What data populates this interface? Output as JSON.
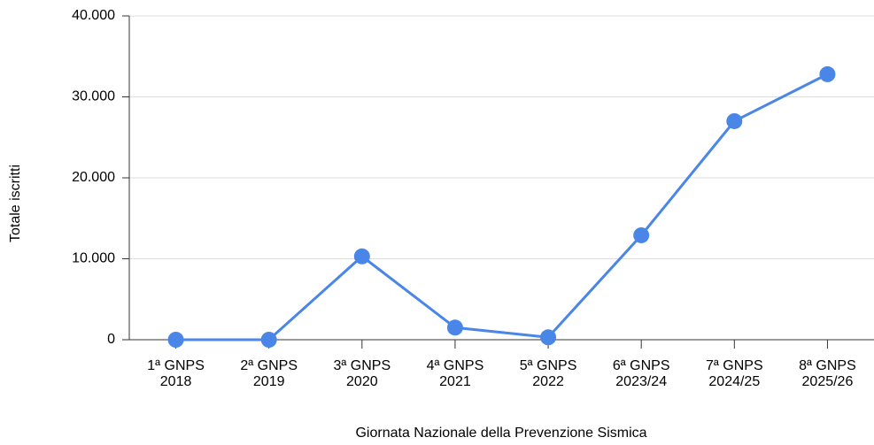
{
  "chart_data": {
    "type": "line",
    "xlabel": "Giornata Nazionale della Prevenzione Sismica",
    "ylabel": "Totale iscritti",
    "categories": [
      [
        "1ª GNPS",
        "2018"
      ],
      [
        "2ª GNPS",
        "2019"
      ],
      [
        "3ª GNPS",
        "2020"
      ],
      [
        "4ª GNPS",
        "2021"
      ],
      [
        "5ª GNPS",
        "2022"
      ],
      [
        "6ª GNPS",
        "2023/24"
      ],
      [
        "7ª GNPS",
        "2024/25"
      ],
      [
        "8ª GNPS",
        "2025/26"
      ]
    ],
    "series": [
      {
        "color": "#4a86e8",
        "values": [
          0,
          0,
          10300,
          1500,
          300,
          12900,
          27000,
          32800
        ]
      }
    ],
    "ylim": [
      0,
      40000
    ],
    "yticks": [
      0,
      {
        "value": 10000,
        "label": "10.000"
      },
      {
        "value": 20000,
        "label": "20.000"
      },
      {
        "value": 30000,
        "label": "30.000"
      },
      {
        "value": 40000,
        "label": "40.000"
      }
    ],
    "grid": true
  }
}
